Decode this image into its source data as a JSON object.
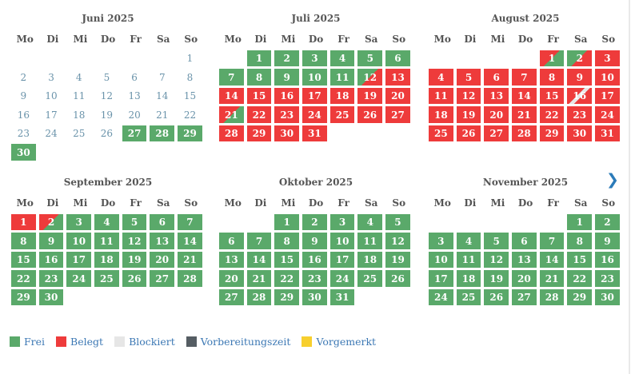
{
  "colors": {
    "free": "#5aa96a",
    "booked": "#ee3b3b",
    "blocked": "#e6e6e6",
    "prep": "#555d63",
    "reserved": "#f7cf2e",
    "past_text": "#6a93aa"
  },
  "weekdays": [
    "Mo",
    "Di",
    "Mi",
    "Do",
    "Fr",
    "Sa",
    "So"
  ],
  "next_label": "❯",
  "months": [
    {
      "title": "Juni 2025",
      "offset": 6,
      "days": [
        "p",
        "p",
        "p",
        "p",
        "p",
        "p",
        "p",
        "p",
        "p",
        "p",
        "p",
        "p",
        "p",
        "p",
        "p",
        "p",
        "p",
        "p",
        "p",
        "p",
        "p",
        "p",
        "p",
        "p",
        "p",
        "p",
        "g",
        "g",
        "g",
        "g"
      ]
    },
    {
      "title": "Juli 2025",
      "offset": 1,
      "days": [
        "g",
        "g",
        "g",
        "g",
        "g",
        "g",
        "g",
        "g",
        "g",
        "g",
        "g",
        "gr",
        "r",
        "r",
        "r",
        "r",
        "r",
        "r",
        "r",
        "r",
        "rg",
        "r",
        "r",
        "r",
        "r",
        "r",
        "r",
        "r",
        "r",
        "r",
        "r"
      ]
    },
    {
      "title": "August 2025",
      "offset": 4,
      "days": [
        "rg",
        "gr",
        "r",
        "r",
        "r",
        "r",
        "r",
        "r",
        "r",
        "r",
        "r",
        "r",
        "r",
        "r",
        "r",
        "rs",
        "r",
        "r",
        "r",
        "r",
        "r",
        "r",
        "r",
        "r",
        "r",
        "r",
        "r",
        "r",
        "r",
        "r",
        "r"
      ]
    },
    {
      "title": "September 2025",
      "offset": 0,
      "days": [
        "r",
        "rg",
        "g",
        "g",
        "g",
        "g",
        "g",
        "g",
        "g",
        "g",
        "g",
        "g",
        "g",
        "g",
        "g",
        "g",
        "g",
        "g",
        "g",
        "g",
        "g",
        "g",
        "g",
        "g",
        "g",
        "g",
        "g",
        "g",
        "g",
        "g"
      ]
    },
    {
      "title": "Oktober 2025",
      "offset": 2,
      "days": [
        "g",
        "g",
        "g",
        "g",
        "g",
        "g",
        "g",
        "g",
        "g",
        "g",
        "g",
        "g",
        "g",
        "g",
        "g",
        "g",
        "g",
        "g",
        "g",
        "g",
        "g",
        "g",
        "g",
        "g",
        "g",
        "g",
        "g",
        "g",
        "g",
        "g",
        "g"
      ]
    },
    {
      "title": "November 2025",
      "offset": 5,
      "days": [
        "g",
        "g",
        "g",
        "g",
        "g",
        "g",
        "g",
        "g",
        "g",
        "g",
        "g",
        "g",
        "g",
        "g",
        "g",
        "g",
        "g",
        "g",
        "g",
        "g",
        "g",
        "g",
        "g",
        "g",
        "g",
        "g",
        "g",
        "g",
        "g",
        "g"
      ]
    }
  ],
  "legend": [
    {
      "label": "Frei",
      "color": "#5aa96a"
    },
    {
      "label": "Belegt",
      "color": "#ee3b3b"
    },
    {
      "label": "Blockiert",
      "color": "#e6e6e6"
    },
    {
      "label": "Vorbereitungszeit",
      "color": "#555d63"
    },
    {
      "label": "Vorgemerkt",
      "color": "#f7cf2e"
    }
  ]
}
